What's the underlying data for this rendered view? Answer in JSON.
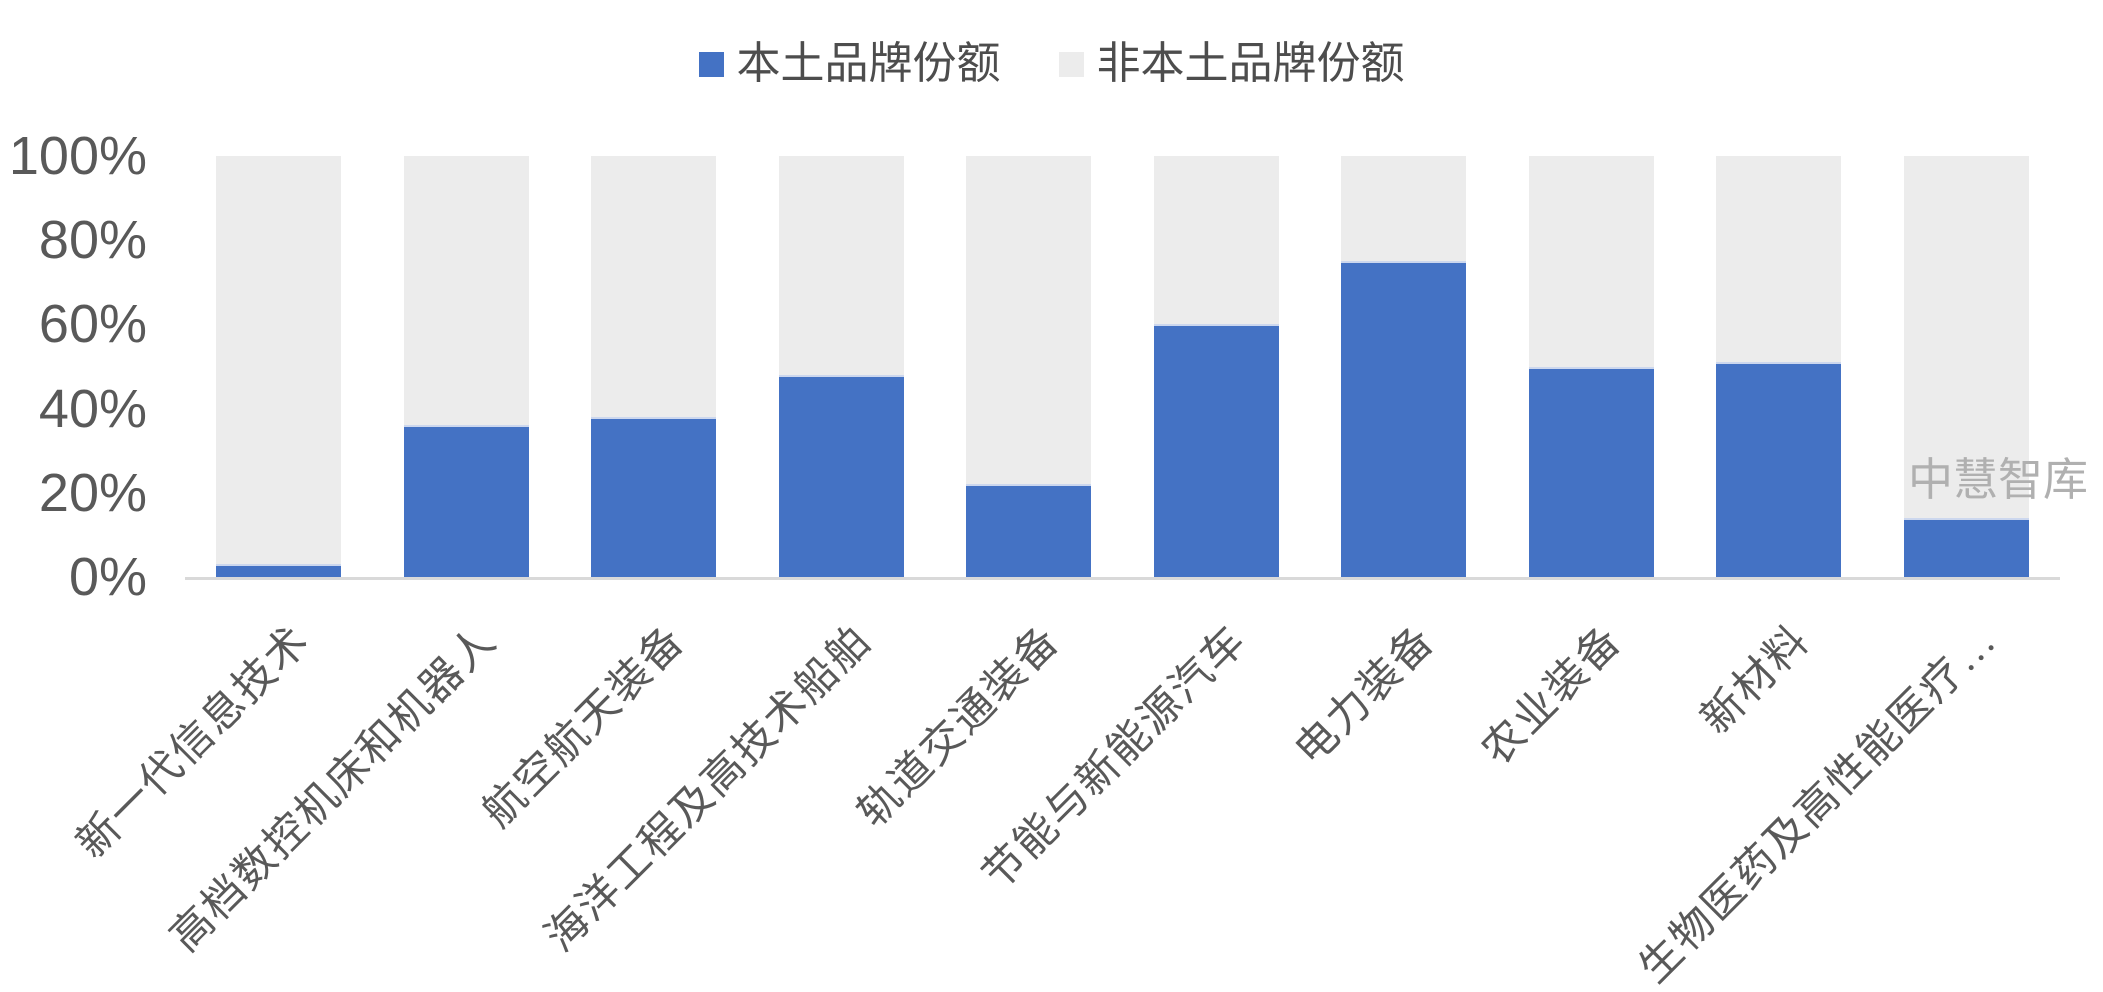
{
  "watermark": "中慧智库",
  "legend": {
    "items": [
      {
        "label": "本土品牌份额",
        "color": "#4472C4"
      },
      {
        "label": "非本土品牌份额",
        "color": "#ECECEC"
      }
    ]
  },
  "chart_data": {
    "type": "bar",
    "stacked": true,
    "title": "",
    "xlabel": "",
    "ylabel": "",
    "categories": [
      "新一代信息技术",
      "高档数控机床和机器人",
      "航空航天装备",
      "海洋工程及高技术船舶",
      "轨道交通装备",
      "节能与新能源汽车",
      "电力装备",
      "农业装备",
      "新材料",
      "生物医药及高性能医疗…"
    ],
    "series": [
      {
        "name": "本土品牌份额",
        "color": "#4472C4",
        "values": [
          3,
          36,
          38,
          48,
          22,
          60,
          75,
          50,
          51,
          14
        ]
      },
      {
        "name": "非本土品牌份额",
        "color": "#ECECEC",
        "values": [
          97,
          64,
          62,
          52,
          78,
          40,
          25,
          50,
          49,
          86
        ]
      }
    ],
    "y_ticks": [
      "0%",
      "20%",
      "40%",
      "60%",
      "80%",
      "100%"
    ],
    "ylim": [
      0,
      100
    ],
    "grid": false,
    "legend_position": "top",
    "bar_colors": {
      "local": "#4472C4",
      "nonlocal": "#ECECEC"
    },
    "axis_line_color": "#d9d9d9"
  }
}
